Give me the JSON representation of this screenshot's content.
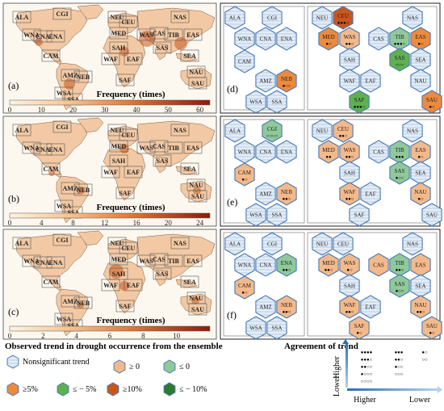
{
  "colors": {
    "nonsig": "#e4edf7",
    "pos0": "#f4b98a",
    "neg0": "#8fc99a",
    "pos5": "#ee8a3c",
    "neg5": "#5fb150",
    "pos10": "#c9561d",
    "neg10": "#2f7a2c",
    "hexstroke": "#4a7ab5"
  },
  "maps": [
    {
      "panel": "(a)",
      "colorbar_title": "Frequency",
      "unit": "(times)",
      "ticks": [
        "0",
        "10",
        "20",
        "30",
        "40",
        "50",
        "60"
      ]
    },
    {
      "panel": "(b)",
      "colorbar_title": "Frequency",
      "unit": "(times)",
      "ticks": [
        "0",
        "4",
        "8",
        "12",
        "16",
        "20",
        "24"
      ]
    },
    {
      "panel": "(c)",
      "colorbar_title": "Frequency",
      "unit": "(times)",
      "ticks": [
        "0",
        "2",
        "4",
        "6",
        "8",
        "10"
      ]
    }
  ],
  "map_region_labels": [
    "ALA",
    "CGI",
    "WNA",
    "CNA",
    "ENA",
    "CAM",
    "AMZ",
    "NEB",
    "WSA",
    "SSA",
    "NEU",
    "CEU",
    "MED",
    "SAH",
    "WAF",
    "EAF",
    "SAF",
    "WAS",
    "CAS",
    "TIB",
    "EAS",
    "NAS",
    "SAS",
    "SEA",
    "NAU",
    "SAU"
  ],
  "hex_panels": [
    {
      "panel": "(d)",
      "regions": [
        {
          "code": "ALA",
          "cls": "nonsig",
          "dots": ""
        },
        {
          "code": "CGI",
          "cls": "nonsig",
          "dots": ""
        },
        {
          "code": "WNA",
          "cls": "nonsig",
          "dots": ""
        },
        {
          "code": "CNA",
          "cls": "nonsig",
          "dots": ""
        },
        {
          "code": "ENA",
          "cls": "nonsig",
          "dots": ""
        },
        {
          "code": "CAM",
          "cls": "nonsig",
          "dots": ""
        },
        {
          "code": "AMZ",
          "cls": "nonsig",
          "dots": ""
        },
        {
          "code": "NEB",
          "cls": "pos5",
          "dots": "●○○"
        },
        {
          "code": "WSA",
          "cls": "nonsig",
          "dots": ""
        },
        {
          "code": "SSA",
          "cls": "nonsig",
          "dots": ""
        },
        {
          "code": "NEU",
          "cls": "nonsig",
          "dots": ""
        },
        {
          "code": "CEU",
          "cls": "pos10",
          "dots": "●●●○"
        },
        {
          "code": "NAS",
          "cls": "nonsig",
          "dots": ""
        },
        {
          "code": "MED",
          "cls": "pos5",
          "dots": "●○"
        },
        {
          "code": "WAS",
          "cls": "pos0",
          "dots": "●●○"
        },
        {
          "code": "CAS",
          "cls": "nonsig",
          "dots": ""
        },
        {
          "code": "TIB",
          "cls": "neg0",
          "dots": "●●●○"
        },
        {
          "code": "EAS",
          "cls": "pos5",
          "dots": "●○"
        },
        {
          "code": "SAH",
          "cls": "nonsig",
          "dots": ""
        },
        {
          "code": "SAS",
          "cls": "neg5",
          "dots": "○○○"
        },
        {
          "code": "SEA",
          "cls": "nonsig",
          "dots": ""
        },
        {
          "code": "WAF",
          "cls": "nonsig",
          "dots": ""
        },
        {
          "code": "EAF",
          "cls": "nonsig",
          "dots": ""
        },
        {
          "code": "NAU",
          "cls": "nonsig",
          "dots": ""
        },
        {
          "code": "SAF",
          "cls": "neg5",
          "dots": "●●●○"
        },
        {
          "code": "SAU",
          "cls": "pos5",
          "dots": "●○"
        }
      ]
    },
    {
      "panel": "(e)",
      "regions": [
        {
          "code": "ALA",
          "cls": "nonsig",
          "dots": ""
        },
        {
          "code": "CGI",
          "cls": "neg0",
          "dots": "○○○○"
        },
        {
          "code": "WNA",
          "cls": "nonsig",
          "dots": ""
        },
        {
          "code": "CNA",
          "cls": "nonsig",
          "dots": ""
        },
        {
          "code": "ENA",
          "cls": "nonsig",
          "dots": ""
        },
        {
          "code": "CAM",
          "cls": "pos0",
          "dots": "●○"
        },
        {
          "code": "AMZ",
          "cls": "nonsig",
          "dots": ""
        },
        {
          "code": "NEB",
          "cls": "pos0",
          "dots": "●●○"
        },
        {
          "code": "WSA",
          "cls": "nonsig",
          "dots": ""
        },
        {
          "code": "SSA",
          "cls": "nonsig",
          "dots": ""
        },
        {
          "code": "NEU",
          "cls": "nonsig",
          "dots": ""
        },
        {
          "code": "CEU",
          "cls": "pos0",
          "dots": "●●○"
        },
        {
          "code": "NAS",
          "cls": "nonsig",
          "dots": ""
        },
        {
          "code": "MED",
          "cls": "pos0",
          "dots": "●●"
        },
        {
          "code": "WAS",
          "cls": "pos0",
          "dots": "●●○"
        },
        {
          "code": "CAS",
          "cls": "nonsig",
          "dots": ""
        },
        {
          "code": "TIB",
          "cls": "neg0",
          "dots": "●●●"
        },
        {
          "code": "EAS",
          "cls": "pos0",
          "dots": "●○"
        },
        {
          "code": "SAH",
          "cls": "nonsig",
          "dots": ""
        },
        {
          "code": "SAS",
          "cls": "neg0",
          "dots": "●○○"
        },
        {
          "code": "SEA",
          "cls": "nonsig",
          "dots": ""
        },
        {
          "code": "WAF",
          "cls": "pos0",
          "dots": "●●○"
        },
        {
          "code": "EAF",
          "cls": "nonsig",
          "dots": ""
        },
        {
          "code": "NAU",
          "cls": "pos0",
          "dots": "●○"
        },
        {
          "code": "SAF",
          "cls": "nonsig",
          "dots": ""
        },
        {
          "code": "SAU",
          "cls": "nonsig",
          "dots": ""
        }
      ]
    },
    {
      "panel": "(f)",
      "regions": [
        {
          "code": "ALA",
          "cls": "nonsig",
          "dots": ""
        },
        {
          "code": "CGI",
          "cls": "nonsig",
          "dots": ""
        },
        {
          "code": "WNA",
          "cls": "nonsig",
          "dots": ""
        },
        {
          "code": "CNA",
          "cls": "nonsig",
          "dots": ""
        },
        {
          "code": "ENA",
          "cls": "neg0",
          "dots": "●●○"
        },
        {
          "code": "CAM",
          "cls": "pos0",
          "dots": "●○"
        },
        {
          "code": "AMZ",
          "cls": "nonsig",
          "dots": ""
        },
        {
          "code": "NEB",
          "cls": "pos0",
          "dots": "●●○"
        },
        {
          "code": "WSA",
          "cls": "nonsig",
          "dots": ""
        },
        {
          "code": "SSA",
          "cls": "nonsig",
          "dots": ""
        },
        {
          "code": "NEU",
          "cls": "nonsig",
          "dots": ""
        },
        {
          "code": "CEU",
          "cls": "nonsig",
          "dots": ""
        },
        {
          "code": "NAS",
          "cls": "nonsig",
          "dots": ""
        },
        {
          "code": "MED",
          "cls": "pos0",
          "dots": "●●○"
        },
        {
          "code": "WAS",
          "cls": "pos0",
          "dots": "●○"
        },
        {
          "code": "CAS",
          "cls": "pos0",
          "dots": ""
        },
        {
          "code": "TIB",
          "cls": "neg0",
          "dots": "●●○"
        },
        {
          "code": "EAS",
          "cls": "pos0",
          "dots": ""
        },
        {
          "code": "SAH",
          "cls": "nonsig",
          "dots": ""
        },
        {
          "code": "SAS",
          "cls": "neg0",
          "dots": "●○○"
        },
        {
          "code": "SEA",
          "cls": "nonsig",
          "dots": ""
        },
        {
          "code": "WAF",
          "cls": "pos0",
          "dots": "●●○"
        },
        {
          "code": "EAF",
          "cls": "nonsig",
          "dots": ""
        },
        {
          "code": "NAU",
          "cls": "pos0",
          "dots": "●●○"
        },
        {
          "code": "SAF",
          "cls": "pos0",
          "dots": "●○"
        },
        {
          "code": "SAU",
          "cls": "pos0",
          "dots": "●○"
        }
      ]
    }
  ],
  "legend": {
    "title": "Observed trend in drought occurrence from the ensemble",
    "items": [
      {
        "label": "Nonsignificant trend",
        "cls": "nonsig"
      },
      {
        "label": "≥ 0",
        "cls": "pos0"
      },
      {
        "label": "≤ 0",
        "cls": "neg0"
      },
      {
        "label": "≥5%",
        "cls": "pos5"
      },
      {
        "label": "≤ − 5%",
        "cls": "neg5"
      },
      {
        "label": "≥10%",
        "cls": "pos10"
      },
      {
        "label": "≤ − 10%",
        "cls": "neg10"
      }
    ]
  },
  "agreement": {
    "title": "Agreement of trend",
    "y_higher": "Higher",
    "y_lower": "Lower",
    "x_higher": "Higher",
    "x_lower": "Lower",
    "rows_left": [
      "●●●●",
      "●●●○",
      "●●○○",
      "●○○○",
      "○○○○"
    ],
    "rows_right": [
      "●●●",
      "●●○",
      "●○○",
      "○○○"
    ],
    "extra_right": [
      "●○",
      "○○"
    ]
  },
  "chart_data": {
    "type": "heatmap",
    "panels": [
      {
        "panel": "(a)",
        "colorbar": "Frequency (times)",
        "range": [
          0,
          60
        ]
      },
      {
        "panel": "(b)",
        "colorbar": "Frequency (times)",
        "range": [
          0,
          24
        ]
      },
      {
        "panel": "(c)",
        "colorbar": "Frequency (times)",
        "range": [
          0,
          10
        ]
      }
    ]
  }
}
